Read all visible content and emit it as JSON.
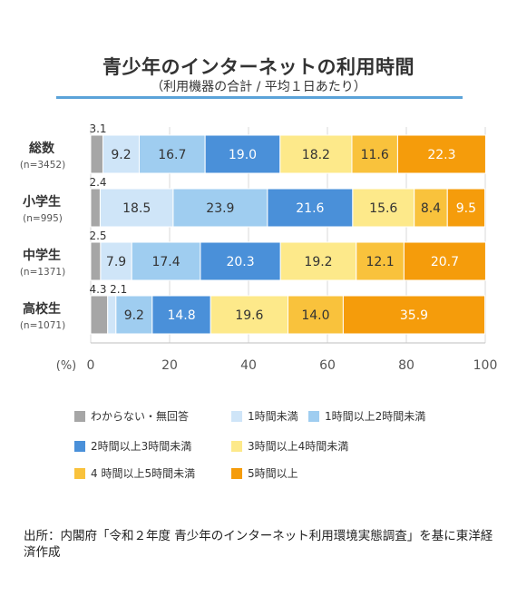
{
  "title": "青少年のインターネットの利用時間",
  "subtitle": "（利用機器の合計 / 平均１日あたり）",
  "chart_data": {
    "type": "bar",
    "orientation": "horizontal",
    "stacked": true,
    "categories": [
      {
        "name": "総数",
        "n": "(n=3452)"
      },
      {
        "name": "小学生",
        "n": "(n=995)"
      },
      {
        "name": "中学生",
        "n": "(n=1371)"
      },
      {
        "name": "高校生",
        "n": "(n=1071)"
      }
    ],
    "series": [
      {
        "name": "わからない・無回答",
        "color": "#a6a6a6",
        "values": [
          3.1,
          2.4,
          2.5,
          4.3
        ]
      },
      {
        "name": "1時間未満",
        "color": "#cfe5f8",
        "values": [
          9.2,
          18.5,
          7.9,
          2.1
        ]
      },
      {
        "name": "1時間以上2時間未満",
        "color": "#9fcdf0",
        "values": [
          16.7,
          23.9,
          17.4,
          9.2
        ]
      },
      {
        "name": "2時間以上3時間未満",
        "color": "#4a90d9",
        "values": [
          19.0,
          21.6,
          20.3,
          14.8
        ]
      },
      {
        "name": "3時間以上4時間未満",
        "color": "#fde98a",
        "values": [
          18.2,
          15.6,
          19.2,
          19.6
        ]
      },
      {
        "name": "4 時間以上5時間未満",
        "color": "#f9c23c",
        "values": [
          11.6,
          8.4,
          12.1,
          14.0
        ]
      },
      {
        "name": "5時間以上",
        "color": "#f59c0b",
        "values": [
          22.3,
          9.5,
          20.7,
          35.9
        ]
      }
    ],
    "xlim": [
      0,
      100
    ],
    "xticks": [
      "0",
      "20",
      "40",
      "60",
      "80",
      "100"
    ],
    "xunit": "(%)"
  },
  "source": "出所：内閣府「令和２年度 青少年のインターネット利用環境実態調査」を基に東洋経済作成"
}
